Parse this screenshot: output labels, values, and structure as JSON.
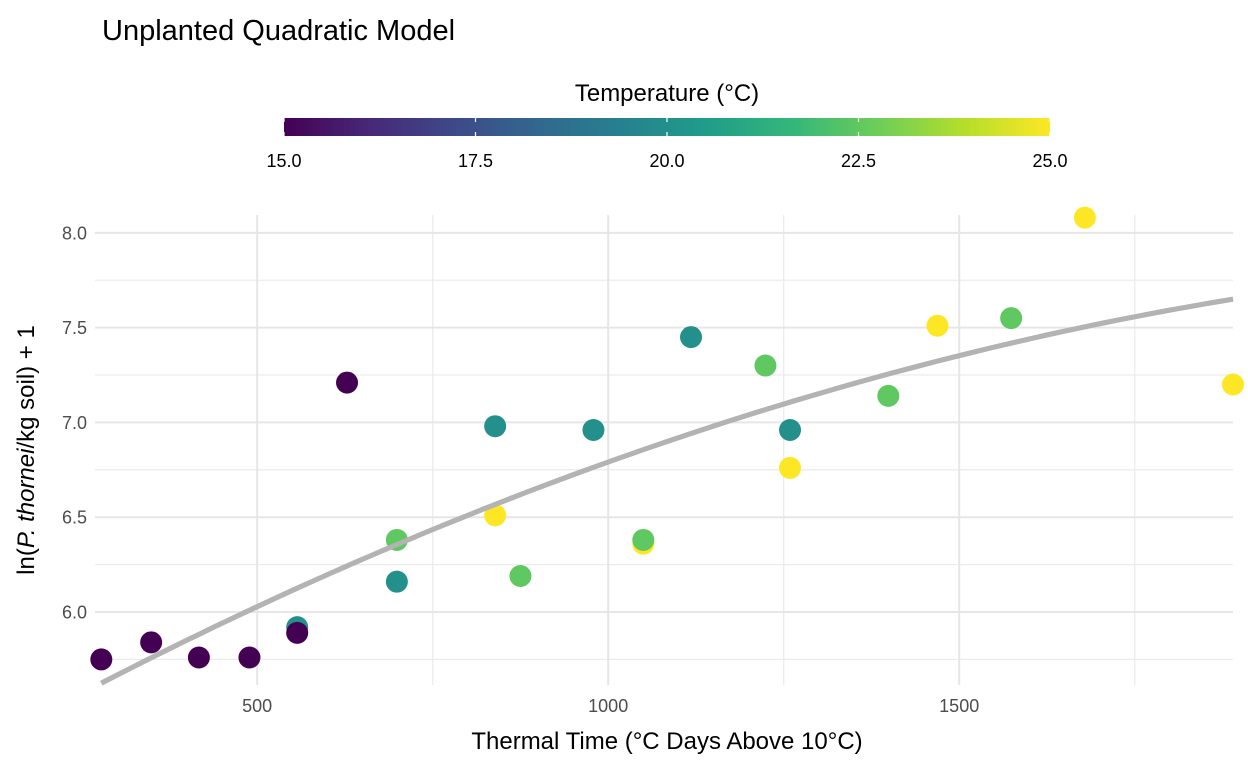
{
  "chart_data": {
    "type": "scatter",
    "title": "Unplanted Quadratic Model",
    "xlabel": "Thermal Time (°C Days Above 10°C)",
    "ylabel": {
      "prefix": "ln(",
      "italic": "P. thornei",
      "suffix": "/kg soil) + 1"
    },
    "xlim": [
      269,
      1890
    ],
    "ylim": [
      5.615,
      8.094
    ],
    "x_ticks": [
      500,
      1000,
      1500
    ],
    "x_tick_labels": [
      "500",
      "1000",
      "1500"
    ],
    "x_minor_ticks": [
      750,
      1250,
      1750
    ],
    "y_ticks": [
      6.0,
      6.5,
      7.0,
      7.5,
      8.0
    ],
    "y_tick_labels": [
      "6.0",
      "6.5",
      "7.0",
      "7.5",
      "8.0"
    ],
    "y_minor_ticks": [
      5.75,
      6.25,
      6.75,
      7.25,
      7.75
    ],
    "grid": true,
    "legend": {
      "title": "Temperature (°C)",
      "type": "colorbar",
      "placement": "top",
      "palette": "viridis",
      "range": [
        15.0,
        25.0
      ],
      "ticks": [
        15.0,
        17.5,
        20.0,
        22.5,
        25.0
      ],
      "tick_labels": [
        "15.0",
        "17.5",
        "20.0",
        "22.5",
        "25.0"
      ]
    },
    "series": [
      {
        "name": "observations",
        "type": "scatter",
        "points": [
          {
            "x": 278,
            "y": 5.75,
            "temp": 15
          },
          {
            "x": 349,
            "y": 5.84,
            "temp": 15
          },
          {
            "x": 417,
            "y": 5.76,
            "temp": 15
          },
          {
            "x": 489,
            "y": 5.76,
            "temp": 15
          },
          {
            "x": 557,
            "y": 5.92,
            "temp": 20
          },
          {
            "x": 557,
            "y": 5.89,
            "temp": 15
          },
          {
            "x": 628,
            "y": 7.21,
            "temp": 15
          },
          {
            "x": 699,
            "y": 6.16,
            "temp": 20
          },
          {
            "x": 839,
            "y": 6.98,
            "temp": 20
          },
          {
            "x": 839,
            "y": 6.51,
            "temp": 25
          },
          {
            "x": 875,
            "y": 6.19,
            "temp": 22.5
          },
          {
            "x": 979,
            "y": 6.96,
            "temp": 20
          },
          {
            "x": 1050,
            "y": 6.36,
            "temp": 25
          },
          {
            "x": 1050,
            "y": 6.38,
            "temp": 22.5
          },
          {
            "x": 1118,
            "y": 7.45,
            "temp": 20
          },
          {
            "x": 1224,
            "y": 7.3,
            "temp": 22.5
          },
          {
            "x": 1259,
            "y": 6.96,
            "temp": 20
          },
          {
            "x": 1259,
            "y": 6.76,
            "temp": 25
          },
          {
            "x": 1399,
            "y": 7.14,
            "temp": 22.5
          },
          {
            "x": 1469,
            "y": 7.51,
            "temp": 25
          },
          {
            "x": 1574,
            "y": 7.55,
            "temp": 22.5
          },
          {
            "x": 1679,
            "y": 8.08,
            "temp": 25
          },
          {
            "x": 1890,
            "y": 7.2,
            "temp": 25
          }
        ],
        "overlay_points": [
          {
            "x": 699,
            "y": 6.38,
            "temp": 22.5
          }
        ]
      },
      {
        "name": "quadratic fit",
        "type": "line",
        "color": "#b3b3b3",
        "x_range": [
          278,
          1890
        ],
        "coefficients": {
          "intercept": 5.064,
          "linear": 0.00213,
          "quadratic": -4.03e-07
        }
      }
    ],
    "colors": {
      "viridis_stops": [
        "#440154",
        "#482878",
        "#3e4989",
        "#31688e",
        "#26828e",
        "#1f9e89",
        "#35b779",
        "#6ece58",
        "#b5de2b",
        "#fde725"
      ],
      "grid": "#ebebeb",
      "fit_line": "#b3b3b3"
    }
  }
}
